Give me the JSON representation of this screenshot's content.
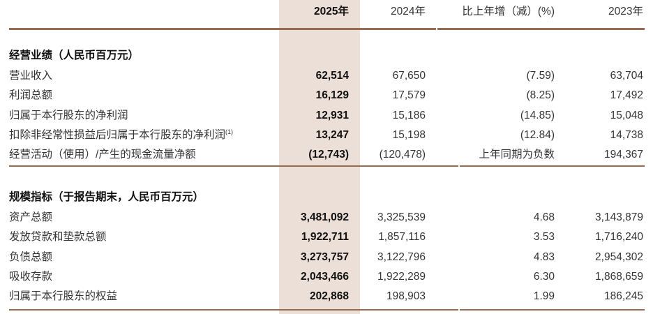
{
  "colors": {
    "highlight_column_bg": "#ecdfd8",
    "rule_brown": "#966b4f"
  },
  "header": {
    "col_2025": "2025年",
    "col_2024": "2024年",
    "col_change": "比上年增（减）(%)",
    "col_2023": "2023年"
  },
  "sections": [
    {
      "title": "经营业绩（人民币百万元）",
      "rows": [
        {
          "label": "营业收入",
          "y2025": "62,514",
          "y2024": "67,650",
          "change": "(7.59)",
          "y2023": "63,704"
        },
        {
          "label": "利润总额",
          "y2025": "16,129",
          "y2024": "17,579",
          "change": "(8.25)",
          "y2023": "17,492"
        },
        {
          "label": "归属于本行股东的净利润",
          "y2025": "12,931",
          "y2024": "15,186",
          "change": "(14.85)",
          "y2023": "15,048"
        },
        {
          "label": "扣除非经常性损益后归属于本行股东的净利润",
          "label_sup": "(1)",
          "y2025": "13,247",
          "y2024": "15,198",
          "change": "(12.84)",
          "y2023": "14,738"
        },
        {
          "label": "经营活动（使用）/产生的现金流量净额",
          "y2025": "(12,743)",
          "y2024": "(120,478)",
          "change": "上年同期为负数",
          "y2023": "194,367"
        }
      ]
    },
    {
      "title": "规模指标（于报告期末，人民币百万元）",
      "rows": [
        {
          "label": "资产总额",
          "y2025": "3,481,092",
          "y2024": "3,325,539",
          "change": "4.68",
          "y2023": "3,143,879"
        },
        {
          "label": "发放贷款和垫款总额",
          "y2025": "1,922,711",
          "y2024": "1,857,116",
          "change": "3.53",
          "y2023": "1,716,240"
        },
        {
          "label": "负债总额",
          "y2025": "3,273,757",
          "y2024": "3,122,796",
          "change": "4.83",
          "y2023": "2,954,302"
        },
        {
          "label": "吸收存款",
          "y2025": "2,043,466",
          "y2024": "1,922,289",
          "change": "6.30",
          "y2023": "1,868,659"
        },
        {
          "label": "归属于本行股东的权益",
          "y2025": "202,868",
          "y2024": "198,903",
          "change": "1.99",
          "y2023": "186,245"
        }
      ]
    }
  ]
}
